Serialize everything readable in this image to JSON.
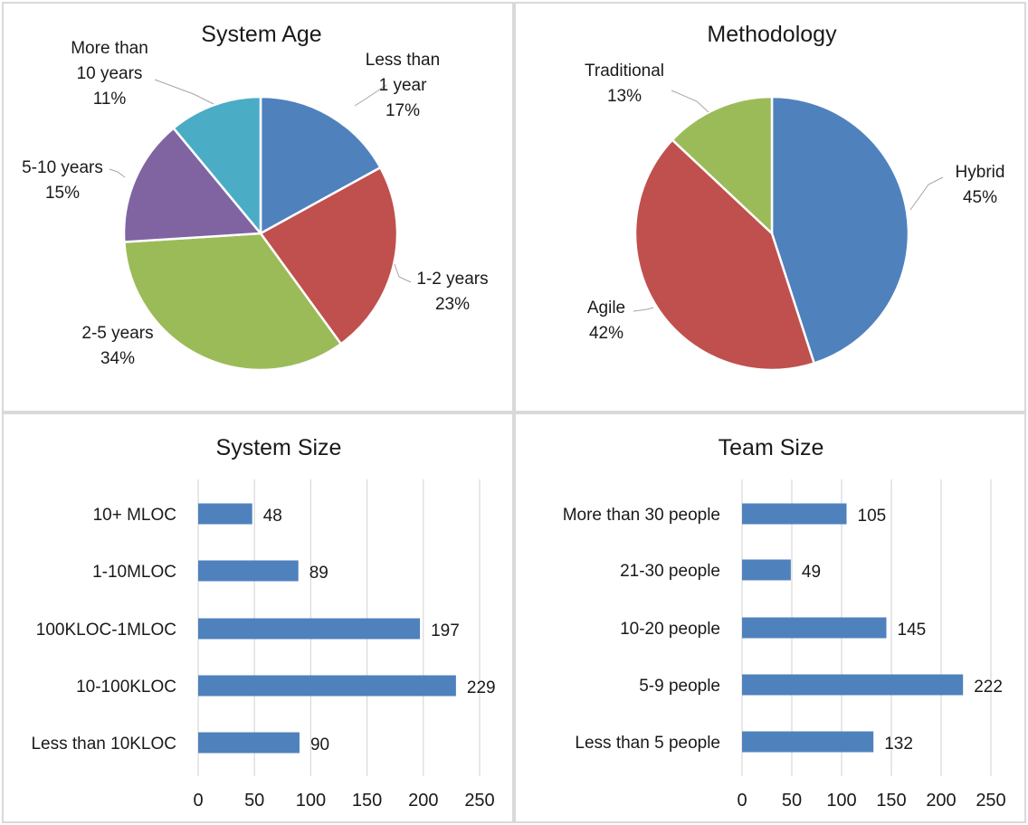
{
  "chart_data": [
    {
      "type": "pie",
      "title": "System Age",
      "slices": [
        {
          "label_lines": [
            "Less than",
            "1 year"
          ],
          "value": 17,
          "pct_label": "17%",
          "color": "#4f81bd"
        },
        {
          "label_lines": [
            "1-2 years"
          ],
          "value": 23,
          "pct_label": "23%",
          "color": "#c0504d"
        },
        {
          "label_lines": [
            "2-5 years"
          ],
          "value": 34,
          "pct_label": "34%",
          "color": "#9bbb59"
        },
        {
          "label_lines": [
            "5-10 years"
          ],
          "value": 15,
          "pct_label": "15%",
          "color": "#8064a2"
        },
        {
          "label_lines": [
            "More than",
            "10 years"
          ],
          "value": 11,
          "pct_label": "11%",
          "color": "#4bacc6"
        }
      ]
    },
    {
      "type": "pie",
      "title": "Methodology",
      "slices": [
        {
          "label_lines": [
            "Hybrid"
          ],
          "value": 45,
          "pct_label": "45%",
          "color": "#4f81bd"
        },
        {
          "label_lines": [
            "Agile"
          ],
          "value": 42,
          "pct_label": "42%",
          "color": "#c0504d"
        },
        {
          "label_lines": [
            "Traditional"
          ],
          "value": 13,
          "pct_label": "13%",
          "color": "#9bbb59"
        }
      ]
    },
    {
      "type": "bar",
      "orientation": "horizontal",
      "title": "System Size",
      "categories": [
        "10+ MLOC",
        "1-10MLOC",
        "100KLOC-1MLOC",
        "10-100KLOC",
        "Less than 10KLOC"
      ],
      "values": [
        48,
        89,
        197,
        229,
        90
      ],
      "xlim": [
        0,
        250
      ],
      "xticks": [
        0,
        50,
        100,
        150,
        200,
        250
      ],
      "grid": true,
      "color": "#4f81bd"
    },
    {
      "type": "bar",
      "orientation": "horizontal",
      "title": "Team Size",
      "categories": [
        "More than 30 people",
        "21-30 people",
        "10-20 people",
        "5-9 people",
        "Less than 5 people"
      ],
      "values": [
        105,
        49,
        145,
        222,
        132
      ],
      "xlim": [
        0,
        250
      ],
      "xticks": [
        0,
        50,
        100,
        150,
        200,
        250
      ],
      "grid": true,
      "color": "#4f81bd"
    }
  ]
}
